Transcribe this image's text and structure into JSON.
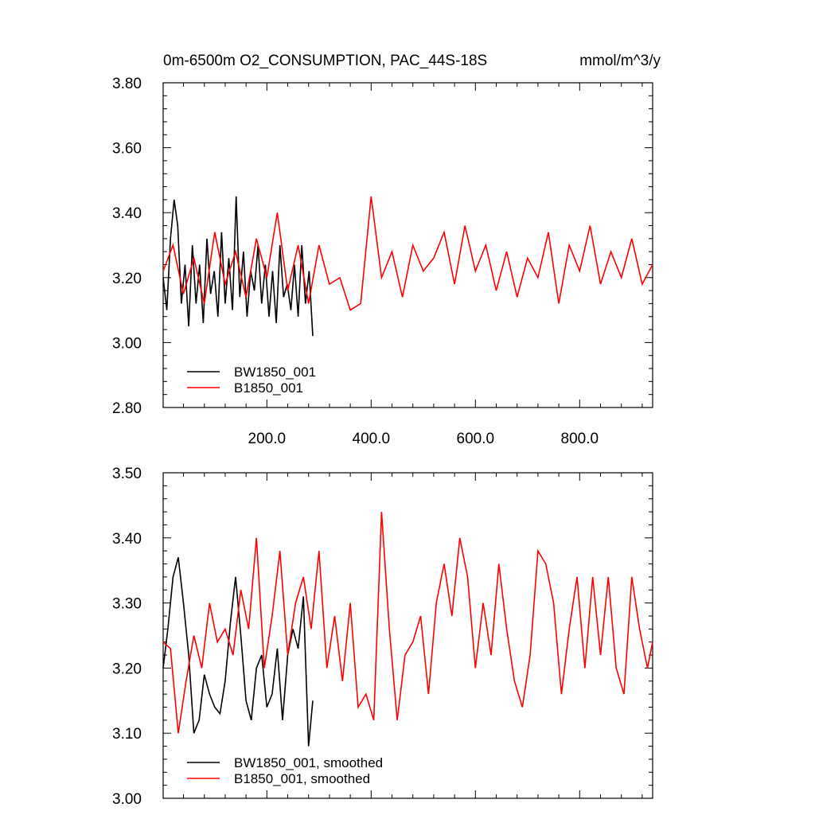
{
  "chart_data": [
    {
      "type": "line",
      "title": "0m-6500m O2_CONSUMPTION, PAC_44S-18S",
      "units": "mmol/m^3/y",
      "xlim": [
        1,
        940
      ],
      "ylim": [
        2.8,
        3.8
      ],
      "xticks": [
        200,
        400,
        600,
        800
      ],
      "xtick_labels": [
        "200.0",
        "400.0",
        "600.0",
        "800.0"
      ],
      "yticks": [
        2.8,
        3.0,
        3.2,
        3.4,
        3.6,
        3.8
      ],
      "ytick_labels": [
        "2.80",
        "3.00",
        "3.20",
        "3.40",
        "3.60",
        "3.80"
      ],
      "legend_position": "bottom-left",
      "grid": false,
      "series": [
        {
          "name": "BW1850_001",
          "color": "#000000",
          "x": [
            1,
            8,
            15,
            22,
            29,
            36,
            43,
            50,
            57,
            64,
            71,
            78,
            85,
            92,
            99,
            106,
            113,
            120,
            127,
            134,
            141,
            148,
            155,
            162,
            169,
            176,
            183,
            190,
            197,
            204,
            211,
            218,
            225,
            232,
            239,
            246,
            253,
            260,
            267,
            274,
            281,
            288
          ],
          "y": [
            3.2,
            3.1,
            3.32,
            3.44,
            3.36,
            3.12,
            3.24,
            3.05,
            3.3,
            3.12,
            3.24,
            3.06,
            3.32,
            3.15,
            3.22,
            3.08,
            3.34,
            3.12,
            3.26,
            3.1,
            3.45,
            3.14,
            3.28,
            3.08,
            3.22,
            3.16,
            3.3,
            3.12,
            3.24,
            3.08,
            3.22,
            3.06,
            3.3,
            3.14,
            3.18,
            3.1,
            3.24,
            3.08,
            3.3,
            3.12,
            3.22,
            3.02
          ]
        },
        {
          "name": "B1850_001",
          "color": "#ff0000",
          "x": [
            1,
            20,
            40,
            60,
            80,
            100,
            120,
            140,
            160,
            180,
            200,
            220,
            240,
            260,
            280,
            300,
            320,
            340,
            360,
            380,
            400,
            420,
            440,
            460,
            480,
            500,
            520,
            540,
            560,
            580,
            600,
            620,
            640,
            660,
            680,
            700,
            720,
            740,
            760,
            780,
            800,
            820,
            840,
            860,
            880,
            900,
            920,
            940
          ],
          "y": [
            3.22,
            3.3,
            3.15,
            3.26,
            3.12,
            3.34,
            3.18,
            3.28,
            3.14,
            3.32,
            3.2,
            3.4,
            3.16,
            3.3,
            3.12,
            3.3,
            3.18,
            3.2,
            3.1,
            3.12,
            3.45,
            3.2,
            3.28,
            3.14,
            3.3,
            3.22,
            3.26,
            3.34,
            3.18,
            3.36,
            3.22,
            3.3,
            3.16,
            3.28,
            3.14,
            3.26,
            3.2,
            3.34,
            3.12,
            3.3,
            3.22,
            3.36,
            3.18,
            3.28,
            3.2,
            3.32,
            3.18,
            3.24
          ]
        }
      ]
    },
    {
      "type": "line",
      "xlim": [
        1,
        940
      ],
      "ylim": [
        3.0,
        3.5
      ],
      "yticks": [
        3.0,
        3.1,
        3.2,
        3.3,
        3.4,
        3.5
      ],
      "ytick_labels": [
        "3.00",
        "3.10",
        "3.20",
        "3.30",
        "3.40",
        "3.50"
      ],
      "legend_position": "bottom-left",
      "grid": false,
      "series": [
        {
          "name": "BW1850_001, smoothed",
          "color": "#000000",
          "x": [
            1,
            10,
            20,
            30,
            40,
            50,
            60,
            70,
            80,
            90,
            100,
            110,
            120,
            130,
            140,
            150,
            160,
            170,
            180,
            190,
            200,
            210,
            220,
            230,
            240,
            250,
            260,
            270,
            280,
            288
          ],
          "y": [
            3.2,
            3.26,
            3.34,
            3.37,
            3.3,
            3.22,
            3.1,
            3.12,
            3.19,
            3.16,
            3.14,
            3.13,
            3.18,
            3.27,
            3.34,
            3.25,
            3.15,
            3.12,
            3.2,
            3.22,
            3.14,
            3.16,
            3.23,
            3.12,
            3.22,
            3.26,
            3.23,
            3.31,
            3.08,
            3.15
          ]
        },
        {
          "name": "B1850_001, smoothed",
          "color": "#ff0000",
          "x": [
            1,
            15,
            30,
            45,
            60,
            75,
            90,
            105,
            120,
            135,
            150,
            165,
            180,
            195,
            210,
            225,
            240,
            255,
            270,
            285,
            300,
            315,
            330,
            345,
            360,
            375,
            390,
            405,
            420,
            435,
            450,
            465,
            480,
            495,
            510,
            525,
            540,
            555,
            570,
            585,
            600,
            615,
            630,
            645,
            660,
            675,
            690,
            705,
            720,
            735,
            750,
            765,
            780,
            795,
            810,
            825,
            840,
            855,
            870,
            885,
            900,
            915,
            930,
            940
          ],
          "y": [
            3.24,
            3.23,
            3.1,
            3.18,
            3.25,
            3.2,
            3.3,
            3.24,
            3.26,
            3.22,
            3.32,
            3.26,
            3.4,
            3.2,
            3.28,
            3.38,
            3.22,
            3.3,
            3.34,
            3.26,
            3.38,
            3.2,
            3.28,
            3.18,
            3.3,
            3.14,
            3.16,
            3.12,
            3.44,
            3.26,
            3.12,
            3.22,
            3.24,
            3.28,
            3.16,
            3.3,
            3.36,
            3.28,
            3.4,
            3.34,
            3.2,
            3.3,
            3.22,
            3.36,
            3.26,
            3.18,
            3.14,
            3.22,
            3.38,
            3.36,
            3.3,
            3.16,
            3.26,
            3.34,
            3.2,
            3.34,
            3.22,
            3.34,
            3.2,
            3.16,
            3.34,
            3.26,
            3.2,
            3.24
          ]
        }
      ]
    }
  ]
}
